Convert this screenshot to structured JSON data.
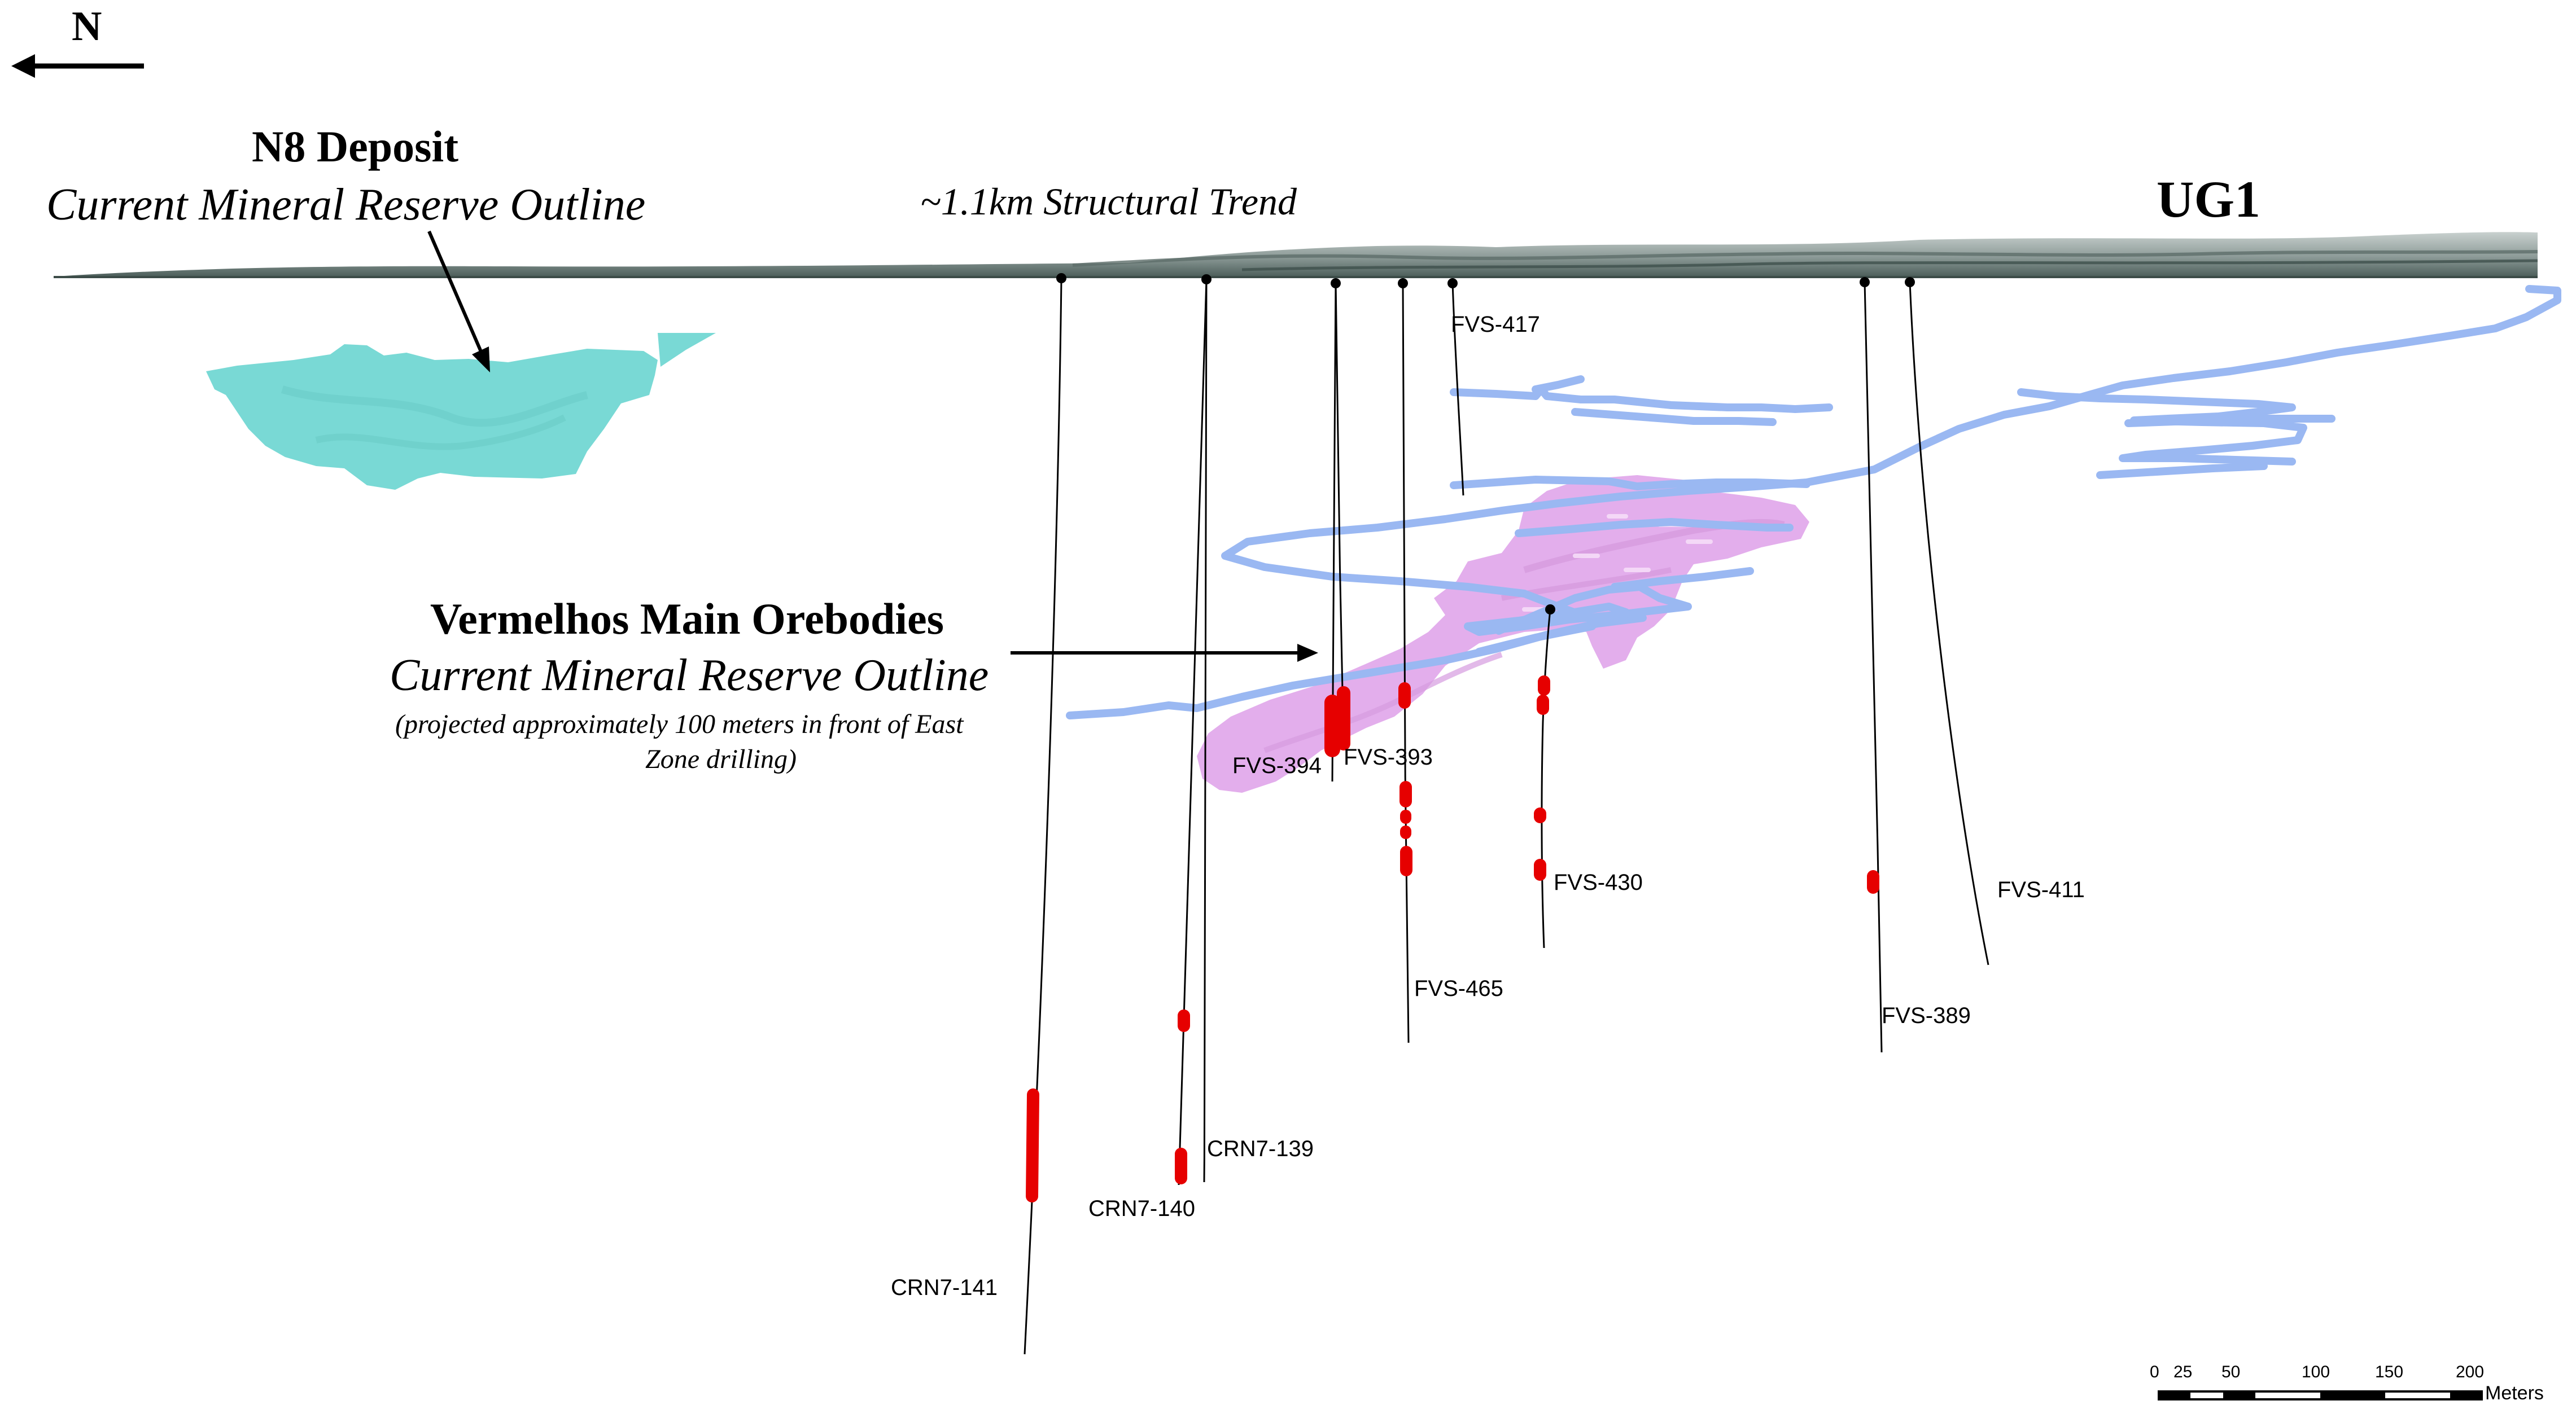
{
  "north": {
    "label": "N",
    "icon": "north-arrow-icon"
  },
  "colors": {
    "n8_deposit": "#79D9D5",
    "vermelhos_orebody": "#E3AEEC",
    "ug1_workings": "#9AB8F2",
    "intercept": "#E60000",
    "terrain": "#7E8E8B",
    "trace": "#000000"
  },
  "annotations": {
    "n8_title": "N8 Deposit",
    "n8_subtitle": "Current Mineral Reserve Outline",
    "trend": "~1.1km Structural Trend",
    "ug1": "UG1",
    "vermelhos_title": "Vermelhos Main Orebodies",
    "vermelhos_subtitle": "Current Mineral Reserve Outline",
    "vermelhos_note_line1": "(projected approximately 100 meters in front of East",
    "vermelhos_note_line2": "Zone drilling)"
  },
  "drillholes": [
    {
      "id": "CRN7-141"
    },
    {
      "id": "CRN7-140"
    },
    {
      "id": "CRN7-139"
    },
    {
      "id": "FVS-394"
    },
    {
      "id": "FVS-393"
    },
    {
      "id": "FVS-465"
    },
    {
      "id": "FVS-417"
    },
    {
      "id": "FVS-430"
    },
    {
      "id": "FVS-389"
    },
    {
      "id": "FVS-411"
    }
  ],
  "scale_bar": {
    "ticks": [
      "0",
      "25",
      "50",
      "100",
      "150",
      "200"
    ],
    "unit": "Meters"
  }
}
